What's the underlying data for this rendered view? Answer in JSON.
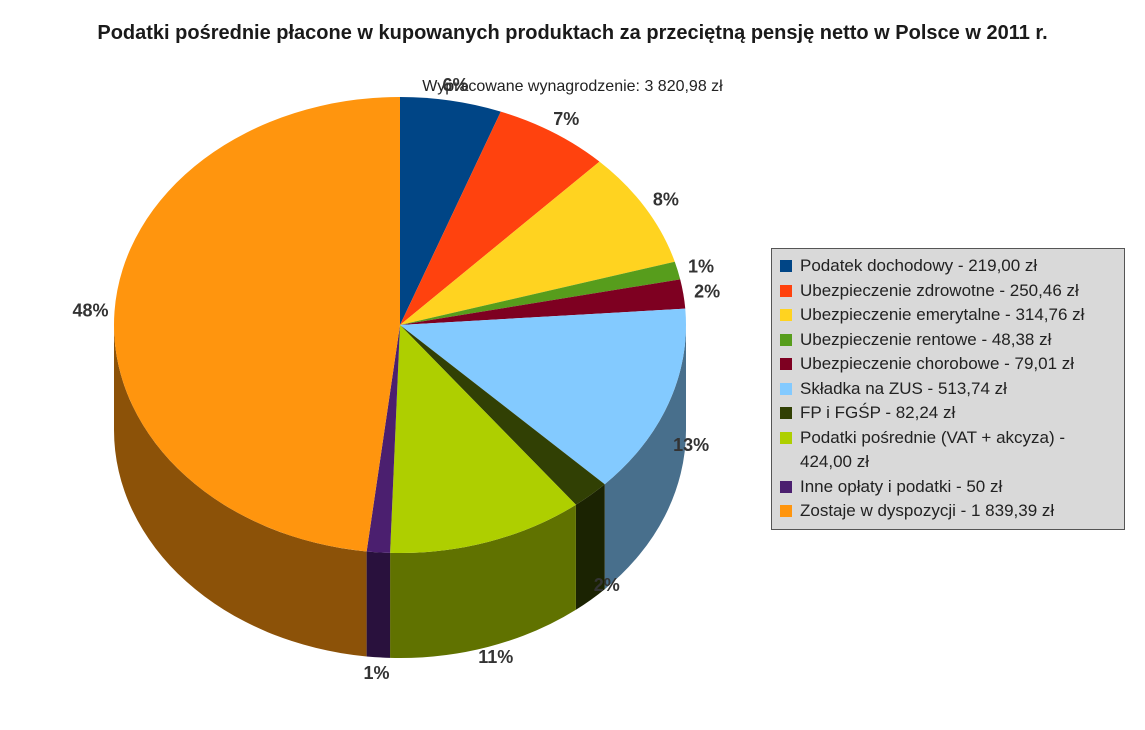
{
  "chart_data": {
    "type": "pie",
    "title": "Podatki pośrednie płacone w kupowanych produktach za przeciętną pensję netto w Polsce w 2011 r.",
    "subtitle": "Wypracowane wynagrodzenie: 3 820,98 zł",
    "legend_position": "right",
    "slices": [
      {
        "legend": "Podatek dochodowy - 219,00 zł",
        "value": 219.0,
        "pct_label": "6%",
        "color": "#004586"
      },
      {
        "legend": "Ubezpieczenie zdrowotne - 250,46 zł",
        "value": 250.46,
        "pct_label": "7%",
        "color": "#ff420e"
      },
      {
        "legend": "Ubezpieczenie emerytalne - 314,76 zł",
        "value": 314.76,
        "pct_label": "8%",
        "color": "#ffd320"
      },
      {
        "legend": "Ubezpieczenie rentowe - 48,38 zł",
        "value": 48.38,
        "pct_label": "1%",
        "color": "#579d1c"
      },
      {
        "legend": "Ubezpieczenie chorobowe - 79,01 zł",
        "value": 79.01,
        "pct_label": "2%",
        "color": "#7e0021"
      },
      {
        "legend": "Składka na ZUS - 513,74 zł",
        "value": 513.74,
        "pct_label": "13%",
        "color": "#83caff"
      },
      {
        "legend": "FP i FGŚP - 82,24 zł",
        "value": 82.24,
        "pct_label": "2%",
        "color": "#314004"
      },
      {
        "legend": "Podatki pośrednie (VAT + akcyza) - 424,00 zł",
        "value": 424.0,
        "pct_label": "11%",
        "color": "#aecf00"
      },
      {
        "legend": "Inne opłaty i podatki - 50 zł",
        "value": 50.0,
        "pct_label": "1%",
        "color": "#4b1f6f"
      },
      {
        "legend": "Zostaje w dyspozycji - 1 839,39 zł",
        "value": 1839.39,
        "pct_label": "48%",
        "color": "#ff950e"
      }
    ]
  }
}
